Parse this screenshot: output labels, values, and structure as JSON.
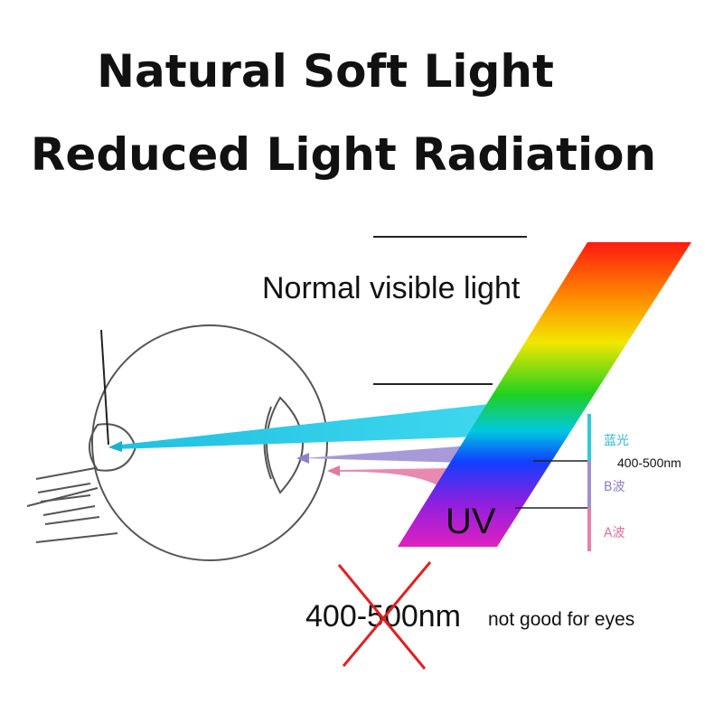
{
  "title": {
    "line1": "Natural Soft Light",
    "line2": "Reduced Light Radiation"
  },
  "diagram": {
    "visible_label": "Normal visible light",
    "uv_label": "UV",
    "bands": {
      "blue": "蓝光",
      "blue_range": "400-500nm",
      "b_wave": "B波",
      "a_wave": "A波"
    },
    "warning": {
      "range": "400-500nm",
      "text": "not good for eyes"
    }
  }
}
